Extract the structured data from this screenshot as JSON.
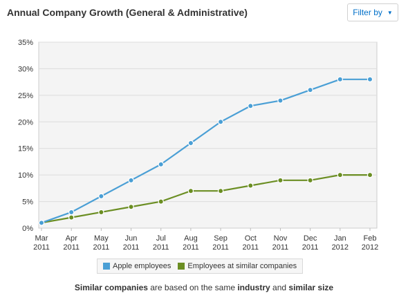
{
  "header": {
    "title": "Annual Company Growth (General & Administrative)",
    "filter_label": "Filter by"
  },
  "chart_data": {
    "type": "line",
    "categories": [
      [
        "Mar",
        "2011"
      ],
      [
        "Apr",
        "2011"
      ],
      [
        "May",
        "2011"
      ],
      [
        "Jun",
        "2011"
      ],
      [
        "Jul",
        "2011"
      ],
      [
        "Aug",
        "2011"
      ],
      [
        "Sep",
        "2011"
      ],
      [
        "Oct",
        "2011"
      ],
      [
        "Nov",
        "2011"
      ],
      [
        "Dec",
        "2011"
      ],
      [
        "Jan",
        "2012"
      ],
      [
        "Feb",
        "2012"
      ]
    ],
    "y_ticks": [
      "0%",
      "5%",
      "10%",
      "15%",
      "20%",
      "25%",
      "30%",
      "35%"
    ],
    "ylim": [
      0,
      35
    ],
    "grid": true,
    "legend_position": "bottom",
    "series": [
      {
        "name": "Apple employees",
        "color": "#4a9fd5",
        "values": [
          1,
          3,
          6,
          9,
          12,
          16,
          20,
          23,
          24,
          26,
          28,
          28
        ]
      },
      {
        "name": "Employees at similar companies",
        "color": "#6b8e23",
        "values": [
          1,
          2,
          3,
          4,
          5,
          7,
          7,
          8,
          9,
          9,
          10,
          10
        ]
      }
    ]
  },
  "footnote": {
    "part1": "Similar companies",
    "part2": " are based on the same ",
    "part3": "industry",
    "part4": " and ",
    "part5": "similar size"
  }
}
